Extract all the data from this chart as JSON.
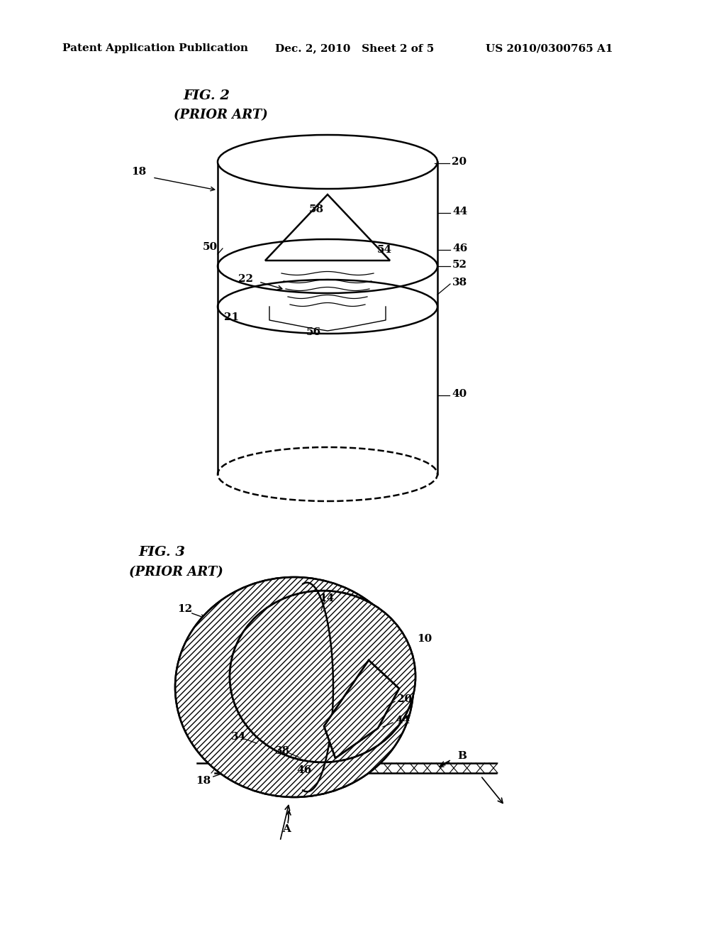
{
  "header_left": "Patent Application Publication",
  "header_mid": "Dec. 2, 2010   Sheet 2 of 5",
  "header_right": "US 2010/0300765 A1",
  "fig2_title": "FIG. 2",
  "fig2_subtitle": "(PRIOR ART)",
  "fig3_title": "FIG. 3",
  "fig3_subtitle": "(PRIOR ART)",
  "bg_color": "#ffffff",
  "line_color": "#000000"
}
